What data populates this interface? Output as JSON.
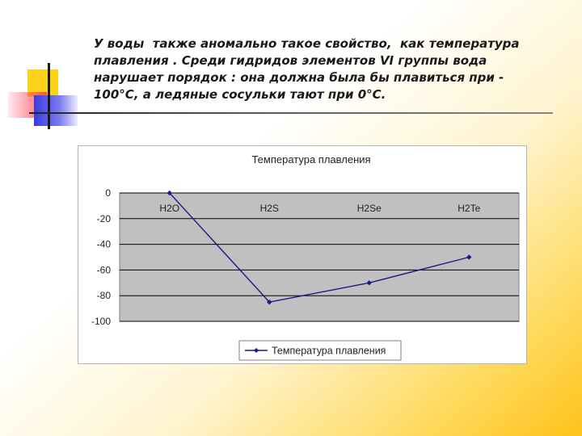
{
  "slide": {
    "text_lines": [
      "У воды  также аномально такое свойство,  как температура",
      "плавления . Среди гидридов элементов VI группы вода",
      "нарушает порядок : она должна была бы плавиться при",
      "100°С, а ледяные сосульки тают при 0°С."
    ],
    "dash": "-"
  },
  "chart_data": {
    "type": "line",
    "title": "Температура плавления",
    "categories": [
      "H2O",
      "H2S",
      "H2Se",
      "H2Te"
    ],
    "series": [
      {
        "name": "Температура плавления",
        "values": [
          0,
          -85,
          -70,
          -50
        ]
      }
    ],
    "ylim": [
      -100,
      0
    ],
    "yticks": [
      0,
      -20,
      -40,
      -60,
      -80,
      -100
    ],
    "xlabel": "",
    "ylabel": "",
    "grid": true,
    "legend": "bottom",
    "colors": {
      "series": "#1a1a8c",
      "plot_bg": "#c0c0c0",
      "grid": "#000000"
    }
  }
}
